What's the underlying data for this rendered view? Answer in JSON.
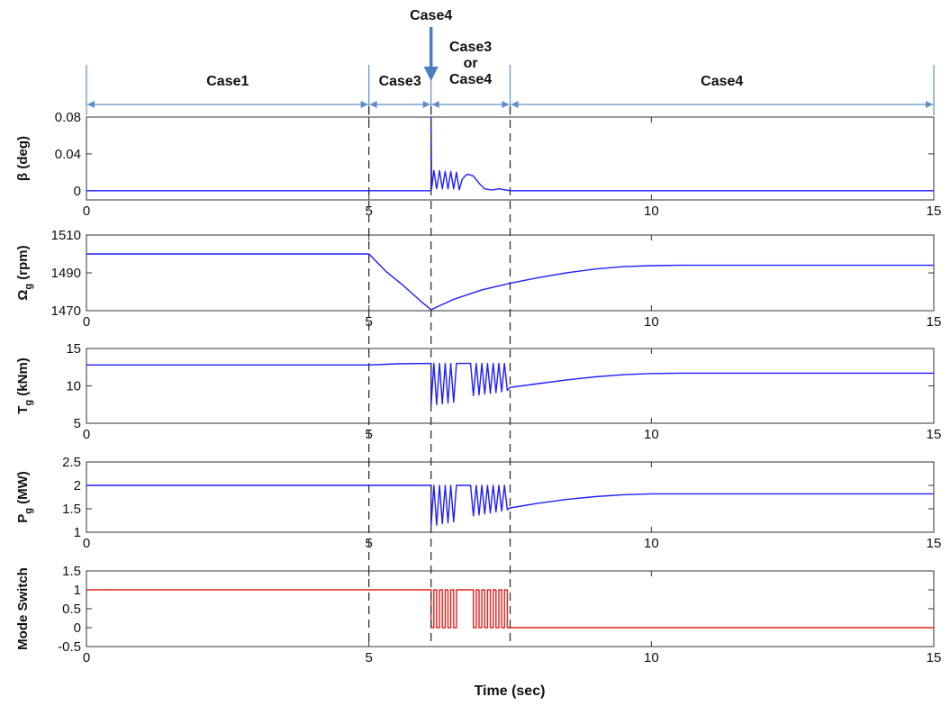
{
  "figure": {
    "xlabel": "Time (sec)",
    "annotation_arrow_label": "Case4",
    "annotation_arrow_time": 6.1,
    "phase_lines": [
      5,
      6.1,
      7.5
    ],
    "case_spans": [
      {
        "label": "Case1",
        "from": 0,
        "to": 5
      },
      {
        "label": "Case3",
        "from": 5,
        "to": 6.1
      },
      {
        "label": "Case3\nor\nCase4",
        "from": 6.1,
        "to": 7.5
      },
      {
        "label": "Case4",
        "from": 7.5,
        "to": 15
      }
    ],
    "colors": {
      "blue_series": "#1f1fff",
      "red_series": "#e8211b",
      "annotation": "#4a7cc0"
    }
  },
  "chart_data": [
    {
      "type": "line",
      "name": "pitch",
      "ylabel": "β (deg)",
      "xlim": [
        0,
        15
      ],
      "ylim": [
        -0.01,
        0.08
      ],
      "xticks": [
        0,
        5,
        10,
        15
      ],
      "yticks": [
        0,
        0.04,
        0.08
      ],
      "ytick_labels": [
        "0",
        "0.04",
        "0.08"
      ],
      "color": "#1f1fff",
      "series": [
        {
          "x": [
            0,
            6.1,
            6.1,
            6.11,
            6.15,
            6.2,
            6.25,
            6.3,
            6.35,
            6.4,
            6.45,
            6.5,
            6.55,
            6.6,
            6.65,
            6.7,
            6.75,
            6.85,
            6.95,
            7.05,
            7.15,
            7.2,
            7.3,
            7.5,
            15
          ],
          "y": [
            0,
            0,
            0.08,
            0.002,
            0.022,
            0.002,
            0.022,
            0.002,
            0.021,
            0.002,
            0.021,
            0.002,
            0.02,
            0.001,
            0.012,
            0.016,
            0.018,
            0.016,
            0.008,
            0.002,
            0.001,
            0.001,
            0.002,
            0,
            0
          ]
        }
      ]
    },
    {
      "type": "line",
      "name": "generator-speed",
      "ylabel": "Ω",
      "ylabel_sub": "g",
      "ylabel_tail": " (rpm)",
      "xlim": [
        0,
        15
      ],
      "ylim": [
        1470,
        1510
      ],
      "xticks": [
        0,
        5,
        10,
        15
      ],
      "yticks": [
        1470,
        1490,
        1510
      ],
      "ytick_labels": [
        "1470",
        "1490",
        "1510"
      ],
      "color": "#1f1fff",
      "series": [
        {
          "x": [
            0,
            5,
            5.3,
            5.6,
            5.9,
            6.1,
            6.5,
            7,
            7.5,
            8,
            8.5,
            9,
            9.5,
            10,
            10.5,
            11,
            15
          ],
          "y": [
            1500,
            1500,
            1490.8,
            1483.5,
            1475.5,
            1470.5,
            1476,
            1481,
            1484.5,
            1487.5,
            1490,
            1492,
            1493.3,
            1493.8,
            1494,
            1494,
            1494
          ]
        }
      ]
    },
    {
      "type": "line",
      "name": "generator-torque",
      "ylabel": "T",
      "ylabel_sub": "g",
      "ylabel_tail": " (kNm)",
      "xlim": [
        0,
        15
      ],
      "ylim": [
        5,
        15
      ],
      "xticks": [
        0,
        5,
        10,
        15
      ],
      "yticks": [
        5,
        10,
        15
      ],
      "ytick_labels": [
        "5",
        "10",
        "15"
      ],
      "color": "#1f1fff",
      "series": [
        {
          "x": [
            0,
            5,
            5.5,
            6.1,
            6.1,
            6.15,
            6.2,
            6.25,
            6.3,
            6.35,
            6.4,
            6.45,
            6.5,
            6.55,
            6.6,
            6.8,
            6.85,
            6.9,
            6.95,
            7,
            7.05,
            7.1,
            7.15,
            7.2,
            7.25,
            7.3,
            7.35,
            7.4,
            7.45,
            7.5,
            8,
            8.5,
            9,
            9.5,
            10,
            10.5,
            11,
            15
          ],
          "y": [
            12.8,
            12.8,
            12.95,
            13,
            7.3,
            13,
            7.5,
            13,
            7.6,
            13,
            7.7,
            13,
            7.8,
            13,
            13,
            13,
            8.7,
            13,
            8.8,
            13,
            8.9,
            13,
            9.0,
            13,
            9.1,
            13,
            9.2,
            13,
            9.4,
            9.8,
            10.3,
            10.8,
            11.2,
            11.5,
            11.65,
            11.7,
            11.7,
            11.7
          ]
        }
      ]
    },
    {
      "type": "line",
      "name": "generator-power",
      "ylabel": "P",
      "ylabel_sub": "g",
      "ylabel_tail": " (MW)",
      "xlim": [
        0,
        15
      ],
      "ylim": [
        1,
        2.5
      ],
      "xticks": [
        0,
        5,
        10,
        15
      ],
      "yticks": [
        1,
        1.5,
        2,
        2.5
      ],
      "ytick_labels": [
        "1",
        "1.5",
        "2",
        "2.5"
      ],
      "color": "#1f1fff",
      "series": [
        {
          "x": [
            0,
            5,
            6.1,
            6.1,
            6.15,
            6.2,
            6.25,
            6.3,
            6.35,
            6.4,
            6.45,
            6.5,
            6.55,
            6.6,
            6.8,
            6.85,
            6.9,
            6.95,
            7,
            7.05,
            7.1,
            7.15,
            7.2,
            7.25,
            7.3,
            7.35,
            7.4,
            7.45,
            7.5,
            8,
            8.5,
            9,
            9.5,
            10,
            15
          ],
          "y": [
            2.0,
            2.0,
            2.0,
            1.12,
            2.0,
            1.15,
            2.0,
            1.18,
            2.0,
            1.2,
            2.0,
            1.22,
            2.0,
            2.0,
            2.0,
            1.35,
            2.0,
            1.37,
            2.0,
            1.39,
            2.0,
            1.41,
            2.0,
            1.43,
            2.0,
            1.45,
            2.0,
            1.48,
            1.52,
            1.62,
            1.7,
            1.76,
            1.8,
            1.82,
            1.82
          ]
        }
      ]
    },
    {
      "type": "line",
      "name": "mode-switch",
      "ylabel": "Mode Switch",
      "xlim": [
        0,
        15
      ],
      "ylim": [
        -0.5,
        1.5
      ],
      "xticks": [
        0,
        5,
        10,
        15
      ],
      "yticks": [
        -0.5,
        0,
        0.5,
        1,
        1.5
      ],
      "ytick_labels": [
        "-0.5",
        "0",
        "0.5",
        "1",
        "1.5"
      ],
      "color": "#e8211b",
      "series": [
        {
          "x": [
            0,
            6.1,
            6.1,
            6.15,
            6.15,
            6.2,
            6.2,
            6.25,
            6.25,
            6.3,
            6.3,
            6.35,
            6.35,
            6.4,
            6.4,
            6.45,
            6.45,
            6.5,
            6.5,
            6.55,
            6.55,
            6.85,
            6.85,
            6.9,
            6.9,
            6.95,
            6.95,
            7.0,
            7.0,
            7.05,
            7.05,
            7.1,
            7.1,
            7.15,
            7.15,
            7.2,
            7.2,
            7.25,
            7.25,
            7.3,
            7.3,
            7.35,
            7.35,
            7.4,
            7.4,
            7.45,
            7.45,
            7.5,
            7.5,
            15
          ],
          "y": [
            1,
            1,
            0,
            0,
            1,
            1,
            0,
            0,
            1,
            1,
            0,
            0,
            1,
            1,
            0,
            0,
            1,
            1,
            0,
            0,
            1,
            1,
            0,
            0,
            1,
            1,
            0,
            0,
            1,
            1,
            0,
            0,
            1,
            1,
            0,
            0,
            1,
            1,
            0,
            0,
            1,
            1,
            0,
            0,
            1,
            1,
            0,
            0,
            0,
            0
          ]
        }
      ]
    }
  ]
}
